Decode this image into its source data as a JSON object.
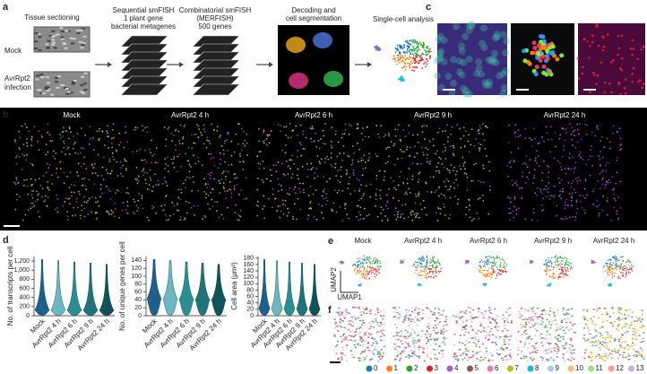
{
  "panel_a": {
    "label": "a",
    "tissue_title": "Tissue sectioning",
    "mock": "Mock",
    "infection": [
      "AvrRpt2",
      "infection"
    ],
    "steps": [
      [
        "Sequential smFISH",
        "1 plant gene",
        "bacterial metagenes"
      ],
      [
        "Combinatorial smFISH",
        "(MERFISH)",
        "500 genes"
      ],
      [
        "Decoding and",
        "cell segmentation"
      ],
      [
        "Single-cell analysis"
      ]
    ]
  },
  "panel_b": {
    "label": "b",
    "titles": [
      "Mock",
      "AvrRpt2 4 h",
      "AvrRpt2 6 h",
      "AvrRpt2 9 h",
      "AvrRpt2 24 h"
    ]
  },
  "panel_c": {
    "label": "c"
  },
  "panel_d": {
    "label": "d",
    "categories": [
      "Mock",
      "AvrRpt2 4 h",
      "AvrRpt2 6 h",
      "AvrRpt2 9 h",
      "AvrRpt2 24 h"
    ],
    "colors": [
      "#1d5f8f",
      "#6bb8c0",
      "#2a8f95",
      "#1f7378",
      "#0f5358"
    ],
    "charts": [
      {
        "ylabel": "No. of transcripts per cell",
        "ylim": [
          0,
          1300
        ],
        "yticks": [
          0,
          200,
          400,
          600,
          800,
          {
            "value": 1000,
            "label": "1,000"
          },
          {
            "value": 1200,
            "label": "1,200"
          }
        ]
      },
      {
        "ylabel": "No. of unique genes per cell",
        "ylim": [
          0,
          150
        ],
        "yticks": [
          0,
          20,
          40,
          60,
          80,
          100,
          120,
          140
        ]
      },
      {
        "ylabel": "Cell area (μm²)",
        "ylim": [
          0,
          185
        ],
        "yticks": [
          0,
          20,
          40,
          60,
          80,
          100,
          120,
          140,
          160,
          180
        ]
      }
    ]
  },
  "panel_e": {
    "label": "e",
    "titles": [
      "Mock",
      "AvrRpt2 4 h",
      "AvrRpt2 6 h",
      "AvrRpt2 9 h",
      "AvrRpt2 24 h"
    ],
    "x_axis": "UMAP1",
    "y_axis": "UMAP2"
  },
  "panel_f": {
    "label": "f",
    "legend": [
      {
        "label": "0",
        "color": "#1f77b4"
      },
      {
        "label": "1",
        "color": "#ff7f0e"
      },
      {
        "label": "2",
        "color": "#2ca02c"
      },
      {
        "label": "3",
        "color": "#d62728"
      },
      {
        "label": "4",
        "color": "#9467bd"
      },
      {
        "label": "5",
        "color": "#8c564b"
      },
      {
        "label": "6",
        "color": "#e377c2"
      },
      {
        "label": "7",
        "color": "#bcbd22"
      },
      {
        "label": "8",
        "color": "#17becf"
      },
      {
        "label": "9",
        "color": "#aec7e8"
      },
      {
        "label": "10",
        "color": "#ffbb78"
      },
      {
        "label": "11",
        "color": "#98df8a"
      },
      {
        "label": "12",
        "color": "#ff9896"
      },
      {
        "label": "13",
        "color": "#c5b0d5"
      }
    ]
  }
}
